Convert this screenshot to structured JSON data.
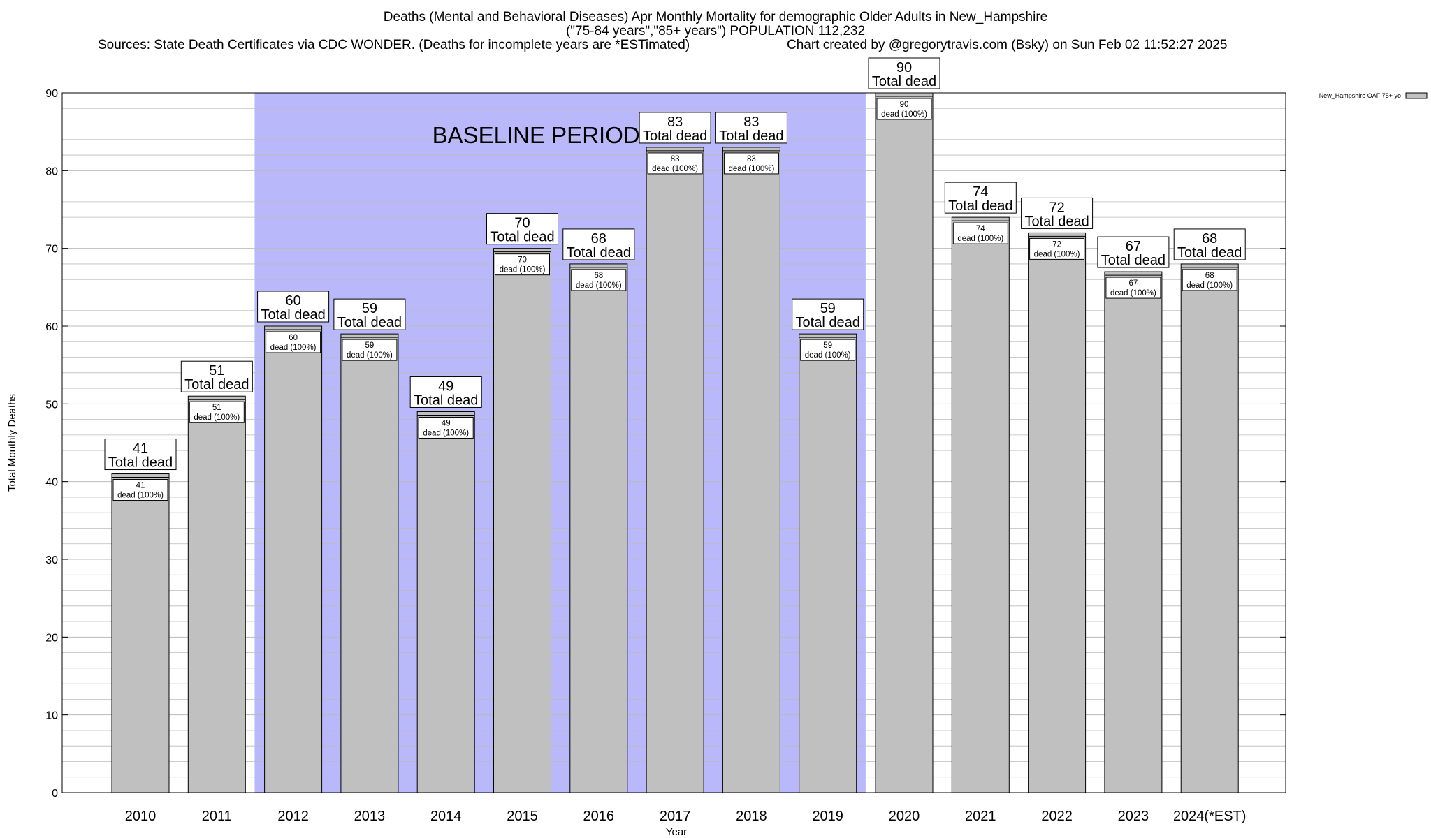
{
  "chart_data": {
    "type": "bar",
    "title": "Deaths (Mental and Behavioral Diseases) Apr Monthly Mortality for demographic Older Adults in New_Hampshire",
    "subtitle": "(\"75-84 years\",\"85+ years\") POPULATION 112,232",
    "source": "Sources: State Death Certificates via CDC WONDER. (Deaths for incomplete years are *ESTimated)",
    "credit": "Chart created by @gregorytravis.com (Bsky) on Sun Feb 02 11:52:27 2025",
    "xlabel": "Year",
    "ylabel": "Total Monthly Deaths",
    "ylim": [
      0,
      90
    ],
    "yticks": [
      0,
      10,
      20,
      30,
      40,
      50,
      60,
      70,
      80,
      90
    ],
    "grid": true,
    "legend_position": "top-right",
    "categories": [
      "2010",
      "2011",
      "2012",
      "2013",
      "2014",
      "2015",
      "2016",
      "2017",
      "2018",
      "2019",
      "2020",
      "2021",
      "2022",
      "2023",
      "2024(*EST)"
    ],
    "series": [
      {
        "name": "New_Hampshire OAF 75+ yo",
        "values": [
          41,
          51,
          60,
          59,
          49,
          70,
          68,
          83,
          83,
          59,
          90,
          74,
          72,
          67,
          68
        ]
      }
    ],
    "top_label_suffix": "Total dead",
    "inner_label_suffix": "dead (100%)",
    "baseline": {
      "label": "BASELINE PERIOD",
      "from": "2012",
      "to": "2019"
    },
    "colors": {
      "bar": "#c0c0c0",
      "baseline": "#b8b8fa",
      "grid": "#bbbbbb"
    }
  }
}
